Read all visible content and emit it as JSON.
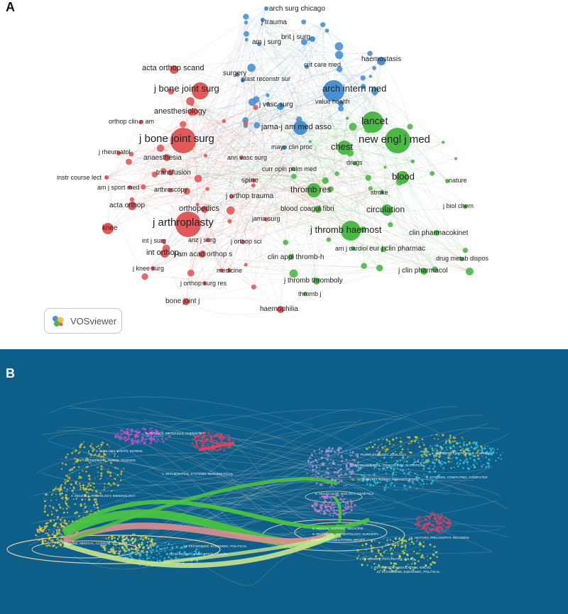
{
  "panel_a": {
    "letter": "A",
    "badge_label": "VOSviewer",
    "colors": {
      "red": "#e05a5a",
      "blue": "#4a90d2",
      "green": "#4cb848"
    },
    "nodes": [
      {
        "label": "arch surg chicago",
        "cluster": "blue"
      },
      {
        "label": "j trauma",
        "cluster": "blue"
      },
      {
        "label": "brit j surg",
        "cluster": "blue"
      },
      {
        "label": "am j surg",
        "cluster": "blue"
      },
      {
        "label": "haemostasis",
        "cluster": "blue"
      },
      {
        "label": "crit care med",
        "cluster": "blue"
      },
      {
        "label": "plast reconstr sur",
        "cluster": "blue"
      },
      {
        "label": "surgery",
        "cluster": "blue"
      },
      {
        "label": "arch intern med",
        "cluster": "blue"
      },
      {
        "label": "value health",
        "cluster": "blue"
      },
      {
        "label": "j vasc surg",
        "cluster": "blue"
      },
      {
        "label": "jama-j am med asso",
        "cluster": "blue"
      },
      {
        "label": "mayo clin proc",
        "cluster": "blue"
      },
      {
        "label": "acta orthop scand",
        "cluster": "red"
      },
      {
        "label": "j bone joint surg",
        "cluster": "red"
      },
      {
        "label": "anesthesiology",
        "cluster": "red"
      },
      {
        "label": "orthop clin n am",
        "cluster": "red"
      },
      {
        "label": "j bone joint surg",
        "cluster": "red"
      },
      {
        "label": "j rheumatol",
        "cluster": "red"
      },
      {
        "label": "anaesthesia",
        "cluster": "red"
      },
      {
        "label": "ann vasc surg",
        "cluster": "red"
      },
      {
        "label": "transfusion",
        "cluster": "red"
      },
      {
        "label": "instr course lect",
        "cluster": "red"
      },
      {
        "label": "am j sport med",
        "cluster": "red"
      },
      {
        "label": "spine",
        "cluster": "red"
      },
      {
        "label": "arthroscopy",
        "cluster": "red"
      },
      {
        "label": "j orthop trauma",
        "cluster": "red"
      },
      {
        "label": "acta orthop",
        "cluster": "red"
      },
      {
        "label": "orthopedics",
        "cluster": "red"
      },
      {
        "label": "jama surg",
        "cluster": "red"
      },
      {
        "label": "knee",
        "cluster": "red"
      },
      {
        "label": "j arthroplasty",
        "cluster": "red"
      },
      {
        "label": "int j surg",
        "cluster": "red"
      },
      {
        "label": "anz j surg",
        "cluster": "red"
      },
      {
        "label": "j orthop sci",
        "cluster": "red"
      },
      {
        "label": "int orthop",
        "cluster": "red"
      },
      {
        "label": "j am acad orthop s",
        "cluster": "red"
      },
      {
        "label": "j knee surg",
        "cluster": "red"
      },
      {
        "label": "medicine",
        "cluster": "red"
      },
      {
        "label": "j orthop surg res",
        "cluster": "red"
      },
      {
        "label": "bone joint j",
        "cluster": "red"
      },
      {
        "label": "haemophilia",
        "cluster": "red"
      },
      {
        "label": "lancet",
        "cluster": "green"
      },
      {
        "label": "new engl j med",
        "cluster": "green"
      },
      {
        "label": "chest",
        "cluster": "green"
      },
      {
        "label": "drugs",
        "cluster": "green"
      },
      {
        "label": "curr opin pulm med",
        "cluster": "green"
      },
      {
        "label": "blood",
        "cluster": "green"
      },
      {
        "label": "nature",
        "cluster": "green"
      },
      {
        "label": "thromb res",
        "cluster": "green"
      },
      {
        "label": "stroke",
        "cluster": "green"
      },
      {
        "label": "j biol chem",
        "cluster": "green"
      },
      {
        "label": "blood coagul fibri",
        "cluster": "green"
      },
      {
        "label": "circulation",
        "cluster": "green"
      },
      {
        "label": "j thromb haemost",
        "cluster": "green"
      },
      {
        "label": "clin pharmacokinet",
        "cluster": "green"
      },
      {
        "label": "am j cardiol",
        "cluster": "green"
      },
      {
        "label": "eur j clin pharmac",
        "cluster": "green"
      },
      {
        "label": "clin appl thromb-h",
        "cluster": "green"
      },
      {
        "label": "drug metab dispos",
        "cluster": "green"
      },
      {
        "label": "j clin pharmacol",
        "cluster": "green"
      },
      {
        "label": "j thromb thromboly",
        "cluster": "green"
      },
      {
        "label": "thromb j",
        "cluster": "green"
      }
    ]
  },
  "panel_b": {
    "letter": "B",
    "background": "#0d5f8a",
    "left_labels": [
      "5. PHYSICS, MATERIALS, CHEMISTRY",
      "3. ECOLOGY, EARTH, MARINE",
      "7. VETERINARY, ANIMAL, SCIENCE",
      "1. MATHEMATICS, SYSTEMS, MATHEMATICAL",
      "4. MOLECULAR, BIOLOGY, IMMUNOLOGY",
      "2. MEDICINE, MEDICAL, CLINICAL",
      "6. PSYCHOLOGY, EDUCATION, HEALTH",
      "10. ECONOMICS, ECONOMIC, POLITICAL"
    ],
    "right_labels": [
      "4. CHEMISTRY, MATERIALS, PHYSICS",
      "10. PLANT, ECOLOGY, ZOOLOGY",
      "2. ENVIRONMENTAL, TOXICOLOGY, NUTRITION",
      "11. VETERINARY, ANIMAL, PARASITOLOGY",
      "3. SYSTEMS, COMPUTING, COMPUTER",
      "8. MOLECULAR, BIOLOGY, GENETICS",
      "5. HEALTH, NURSING, MEDICINE",
      "9. DENTISTRY, DERMATOLOGY, SURGERY",
      "7. SPORTS, REHABILITATION, SPORT",
      "14. HISTORY, PHILOSOPHY, RECORDS",
      "13. MOVIES, PSYCHIATRY, SALES",
      "7. PSYCHOLOGY, EDUCATION, SOCIAL",
      "12. ECONOMICS, ECONOMIC, POLITICAL"
    ],
    "flow_colors": [
      "#4cc640",
      "#d99090",
      "#c7e68f",
      "#f0d060"
    ]
  }
}
